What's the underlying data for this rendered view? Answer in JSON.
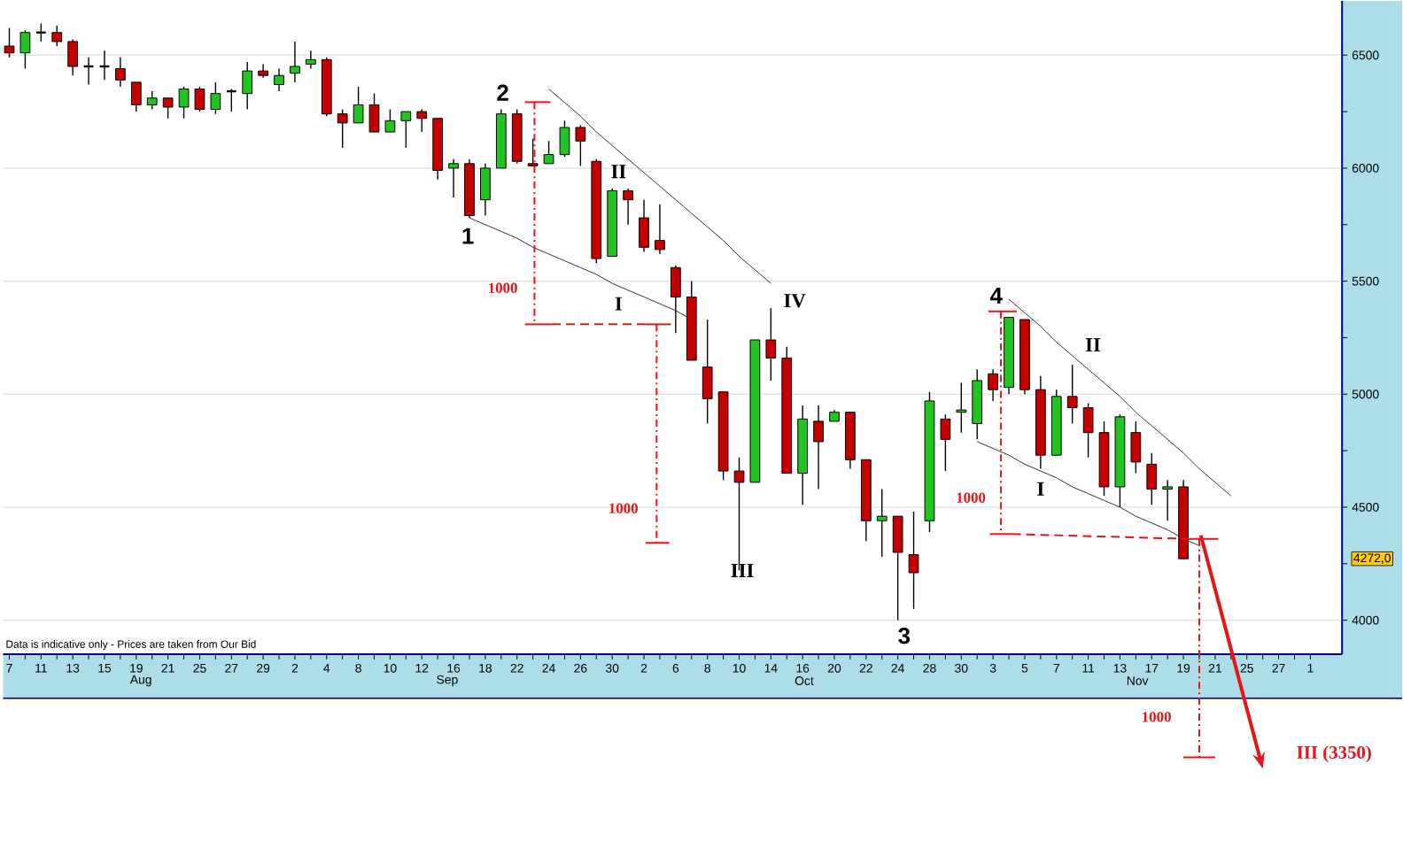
{
  "chart_data": {
    "type": "candlestick",
    "categories": [
      "7",
      null,
      "11",
      null,
      "13",
      null,
      "15",
      null,
      "19",
      null,
      "21",
      null,
      "25",
      null,
      "27",
      null,
      "29",
      null,
      "2",
      null,
      "4",
      null,
      "8",
      null,
      "10",
      null,
      "12",
      null,
      "16",
      null,
      "18",
      null,
      "22",
      null,
      "24",
      null,
      "26",
      null,
      "30",
      null,
      "2",
      null,
      "6",
      null,
      "8",
      null,
      "10",
      null,
      "14",
      null,
      "16",
      null,
      "20",
      null,
      "22",
      null,
      "24",
      null,
      "28",
      null,
      "30",
      null,
      "3",
      null,
      "5",
      null,
      "7",
      null,
      "11",
      null,
      "13",
      null,
      "17",
      null,
      "19",
      null,
      "21",
      null,
      "25",
      null,
      "27",
      null,
      "1"
    ],
    "ohlc": [
      [
        6540,
        6620,
        6490,
        6510
      ],
      [
        6510,
        6610,
        6440,
        6600
      ],
      [
        6600,
        6640,
        6560,
        6600
      ],
      [
        6600,
        6630,
        6540,
        6560
      ],
      [
        6560,
        6570,
        6410,
        6450
      ],
      [
        6450,
        6490,
        6370,
        6450
      ],
      [
        6450,
        6520,
        6390,
        6450
      ],
      [
        6440,
        6490,
        6360,
        6390
      ],
      [
        6380,
        6380,
        6250,
        6280
      ],
      [
        6280,
        6340,
        6260,
        6310
      ],
      [
        6310,
        6310,
        6220,
        6270
      ],
      [
        6270,
        6360,
        6220,
        6350
      ],
      [
        6350,
        6360,
        6250,
        6260
      ],
      [
        6260,
        6380,
        6240,
        6330
      ],
      [
        6340,
        6350,
        6250,
        6340
      ],
      [
        6330,
        6470,
        6260,
        6430
      ],
      [
        6430,
        6460,
        6400,
        6410
      ],
      [
        6370,
        6440,
        6340,
        6410
      ],
      [
        6420,
        6560,
        6380,
        6450
      ],
      [
        6460,
        6520,
        6440,
        6480
      ],
      [
        6480,
        6490,
        6230,
        6240
      ],
      [
        6240,
        6260,
        6090,
        6200
      ],
      [
        6200,
        6360,
        6200,
        6280
      ],
      [
        6280,
        6330,
        6160,
        6160
      ],
      [
        6160,
        6260,
        6160,
        6210
      ],
      [
        6210,
        6250,
        6090,
        6250
      ],
      [
        6250,
        6260,
        6160,
        6220
      ],
      [
        6220,
        6220,
        5950,
        5990
      ],
      [
        6000,
        6040,
        5870,
        6020
      ],
      [
        6020,
        6040,
        5780,
        5790
      ],
      [
        5860,
        6020,
        5790,
        6000
      ],
      [
        6000,
        6260,
        6000,
        6240
      ],
      [
        6240,
        6260,
        6020,
        6030
      ],
      [
        6020,
        6130,
        6010,
        6010
      ],
      [
        6020,
        6120,
        6020,
        6060
      ],
      [
        6060,
        6210,
        6050,
        6180
      ],
      [
        6180,
        6190,
        6010,
        6120
      ],
      [
        6030,
        6040,
        5580,
        5600
      ],
      [
        5610,
        5910,
        5610,
        5900
      ],
      [
        5900,
        5910,
        5750,
        5860
      ],
      [
        5780,
        5860,
        5630,
        5650
      ],
      [
        5680,
        5840,
        5620,
        5640
      ],
      [
        5560,
        5570,
        5270,
        5430
      ],
      [
        5430,
        5500,
        5150,
        5150
      ],
      [
        5120,
        5330,
        4870,
        4980
      ],
      [
        5010,
        5010,
        4620,
        4660
      ],
      [
        4660,
        4720,
        4220,
        4610
      ],
      [
        4610,
        5240,
        4610,
        5240
      ],
      [
        5240,
        5380,
        5060,
        5160
      ],
      [
        5160,
        5210,
        4650,
        4650
      ],
      [
        4650,
        4950,
        4510,
        4890
      ],
      [
        4880,
        4950,
        4580,
        4790
      ],
      [
        4880,
        4930,
        4880,
        4920
      ],
      [
        4920,
        4920,
        4670,
        4710
      ],
      [
        4710,
        4710,
        4350,
        4440
      ],
      [
        4440,
        4580,
        4280,
        4460
      ],
      [
        4460,
        4460,
        4000,
        4300
      ],
      [
        4290,
        4480,
        4050,
        4210
      ],
      [
        4440,
        5010,
        4390,
        4970
      ],
      [
        4890,
        4910,
        4660,
        4800
      ],
      [
        4920,
        5050,
        4830,
        4930
      ],
      [
        4870,
        5110,
        4800,
        5060
      ],
      [
        5090,
        5110,
        4970,
        5020
      ],
      [
        5030,
        5340,
        5000,
        5340
      ],
      [
        5330,
        5330,
        5000,
        5020
      ],
      [
        5020,
        5080,
        4670,
        4730
      ],
      [
        4730,
        5020,
        4730,
        4990
      ],
      [
        4990,
        5130,
        4870,
        4940
      ],
      [
        4940,
        4960,
        4720,
        4830
      ],
      [
        4830,
        4880,
        4550,
        4590
      ],
      [
        4590,
        4910,
        4500,
        4900
      ],
      [
        4830,
        4880,
        4650,
        4700
      ],
      [
        4690,
        4740,
        4510,
        4580
      ],
      [
        4580,
        4620,
        4440,
        4590
      ],
      [
        4590,
        4620,
        4272,
        4272
      ],
      null,
      null,
      null,
      null,
      null,
      null,
      null,
      null
    ],
    "colors": [
      "#c40000",
      "#21c421",
      "#000000",
      "#c40000",
      "#c40000",
      "#000000",
      "#000000",
      "#c40000",
      "#c40000",
      "#21c421",
      "#c40000",
      "#21c421",
      "#c40000",
      "#21c421",
      "#000000",
      "#21c421",
      "#c40000",
      "#21c421",
      "#21c421",
      "#21c421",
      "#c40000",
      "#c40000",
      "#21c421",
      "#c40000",
      "#21c421",
      "#21c421",
      "#c40000",
      "#c40000",
      "#21c421",
      "#c40000",
      "#21c421",
      "#21c421",
      "#c40000",
      "#c40000",
      "#21c421",
      "#21c421",
      "#c40000",
      "#c40000",
      "#21c421",
      "#c40000",
      "#c40000",
      "#c40000",
      "#c40000",
      "#c40000",
      "#c40000",
      "#c40000",
      "#c40000",
      "#21c421",
      "#c40000",
      "#c40000",
      "#21c421",
      "#c40000",
      "#21c421",
      "#c40000",
      "#c40000",
      "#21c421",
      "#c40000",
      "#c40000",
      "#21c421",
      "#c40000",
      "#21c421",
      "#21c421",
      "#c40000",
      "#21c421",
      "#c40000",
      "#c40000",
      "#21c421",
      "#c40000",
      "#c40000",
      "#c40000",
      "#21c421",
      "#c40000",
      "#c40000",
      "#21c421",
      "#c40000",
      null,
      null,
      null,
      null,
      null,
      null,
      null,
      null
    ],
    "series": [
      {
        "type": "line",
        "color": "#333333",
        "values": [
          null,
          null,
          null,
          null,
          null,
          null,
          null,
          null,
          null,
          null,
          null,
          null,
          null,
          null,
          null,
          null,
          null,
          null,
          null,
          null,
          null,
          null,
          null,
          null,
          null,
          null,
          null,
          null,
          null,
          null,
          null,
          null,
          null,
          null,
          6350,
          6290,
          6230,
          6160,
          6100,
          6040,
          5980,
          5920,
          5860,
          5800,
          5740,
          5680,
          5610,
          5550,
          5490,
          null,
          null,
          null,
          null,
          null,
          null,
          null,
          null,
          null,
          null,
          null,
          null,
          null,
          null,
          null,
          null,
          null,
          null,
          null,
          null,
          null,
          null,
          null,
          null,
          null,
          null,
          null,
          null,
          null,
          null,
          null,
          null,
          null,
          null
        ]
      },
      {
        "type": "line",
        "color": "#333333",
        "values": [
          null,
          null,
          null,
          null,
          null,
          null,
          null,
          null,
          null,
          null,
          null,
          null,
          null,
          null,
          null,
          null,
          null,
          null,
          null,
          null,
          null,
          null,
          null,
          null,
          null,
          null,
          null,
          null,
          null,
          5780,
          5750,
          5720,
          5690,
          5650,
          5620,
          5590,
          5560,
          5530,
          5490,
          5460,
          5430,
          5400,
          5370,
          5330,
          null,
          null,
          null,
          null,
          null,
          null,
          null,
          null,
          null,
          null,
          null,
          null,
          null,
          null,
          null,
          null,
          null,
          null,
          null,
          null,
          null,
          null,
          null,
          null,
          null,
          null,
          null,
          null,
          null,
          null,
          null,
          null,
          null,
          null,
          null,
          null,
          null,
          null,
          null
        ]
      },
      {
        "type": "line",
        "color": "#333333",
        "values": [
          null,
          null,
          null,
          null,
          null,
          null,
          null,
          null,
          null,
          null,
          null,
          null,
          null,
          null,
          null,
          null,
          null,
          null,
          null,
          null,
          null,
          null,
          null,
          null,
          null,
          null,
          null,
          null,
          null,
          null,
          null,
          null,
          null,
          null,
          null,
          null,
          null,
          null,
          null,
          null,
          null,
          null,
          null,
          null,
          null,
          null,
          null,
          null,
          null,
          null,
          null,
          null,
          null,
          null,
          null,
          null,
          null,
          null,
          null,
          null,
          null,
          null,
          null,
          5420,
          5360,
          5300,
          5230,
          5170,
          5110,
          5050,
          4990,
          4920,
          4860,
          4800,
          4740,
          4670,
          4610,
          4550,
          null,
          null,
          null,
          null,
          null
        ]
      },
      {
        "type": "line",
        "color": "#333333",
        "values": [
          null,
          null,
          null,
          null,
          null,
          null,
          null,
          null,
          null,
          null,
          null,
          null,
          null,
          null,
          null,
          null,
          null,
          null,
          null,
          null,
          null,
          null,
          null,
          null,
          null,
          null,
          null,
          null,
          null,
          null,
          null,
          null,
          null,
          null,
          null,
          null,
          null,
          null,
          null,
          null,
          null,
          null,
          null,
          null,
          null,
          null,
          null,
          null,
          null,
          null,
          null,
          null,
          null,
          null,
          null,
          null,
          null,
          null,
          null,
          null,
          null,
          4790,
          4760,
          4730,
          4690,
          4660,
          4630,
          4590,
          4560,
          4530,
          4500,
          4460,
          4430,
          4400,
          4360,
          4330,
          null,
          null,
          null,
          null,
          null,
          null,
          null
        ]
      }
    ],
    "ylim": [
      3850,
      6740
    ],
    "yticks": [
      4000,
      {
        "value": 4250,
        "label": null
      },
      4500,
      {
        "value": 4750,
        "label": null
      },
      5000,
      {
        "value": 5250,
        "label": null
      },
      5500,
      {
        "value": 5750,
        "label": null
      },
      6000,
      {
        "value": 6250,
        "label": null
      },
      6500
    ],
    "grid": "y",
    "annotations": [
      "1",
      "2",
      "3",
      "4",
      "II",
      "I",
      "IV",
      "III",
      "II",
      "I",
      "1000",
      "1000",
      "1000",
      "1000",
      "III (3350)",
      "Aug",
      "Sep",
      "Oct",
      "Nov",
      "4272,0",
      "Data is indicative only - Prices are taken from Our Bid"
    ]
  }
}
